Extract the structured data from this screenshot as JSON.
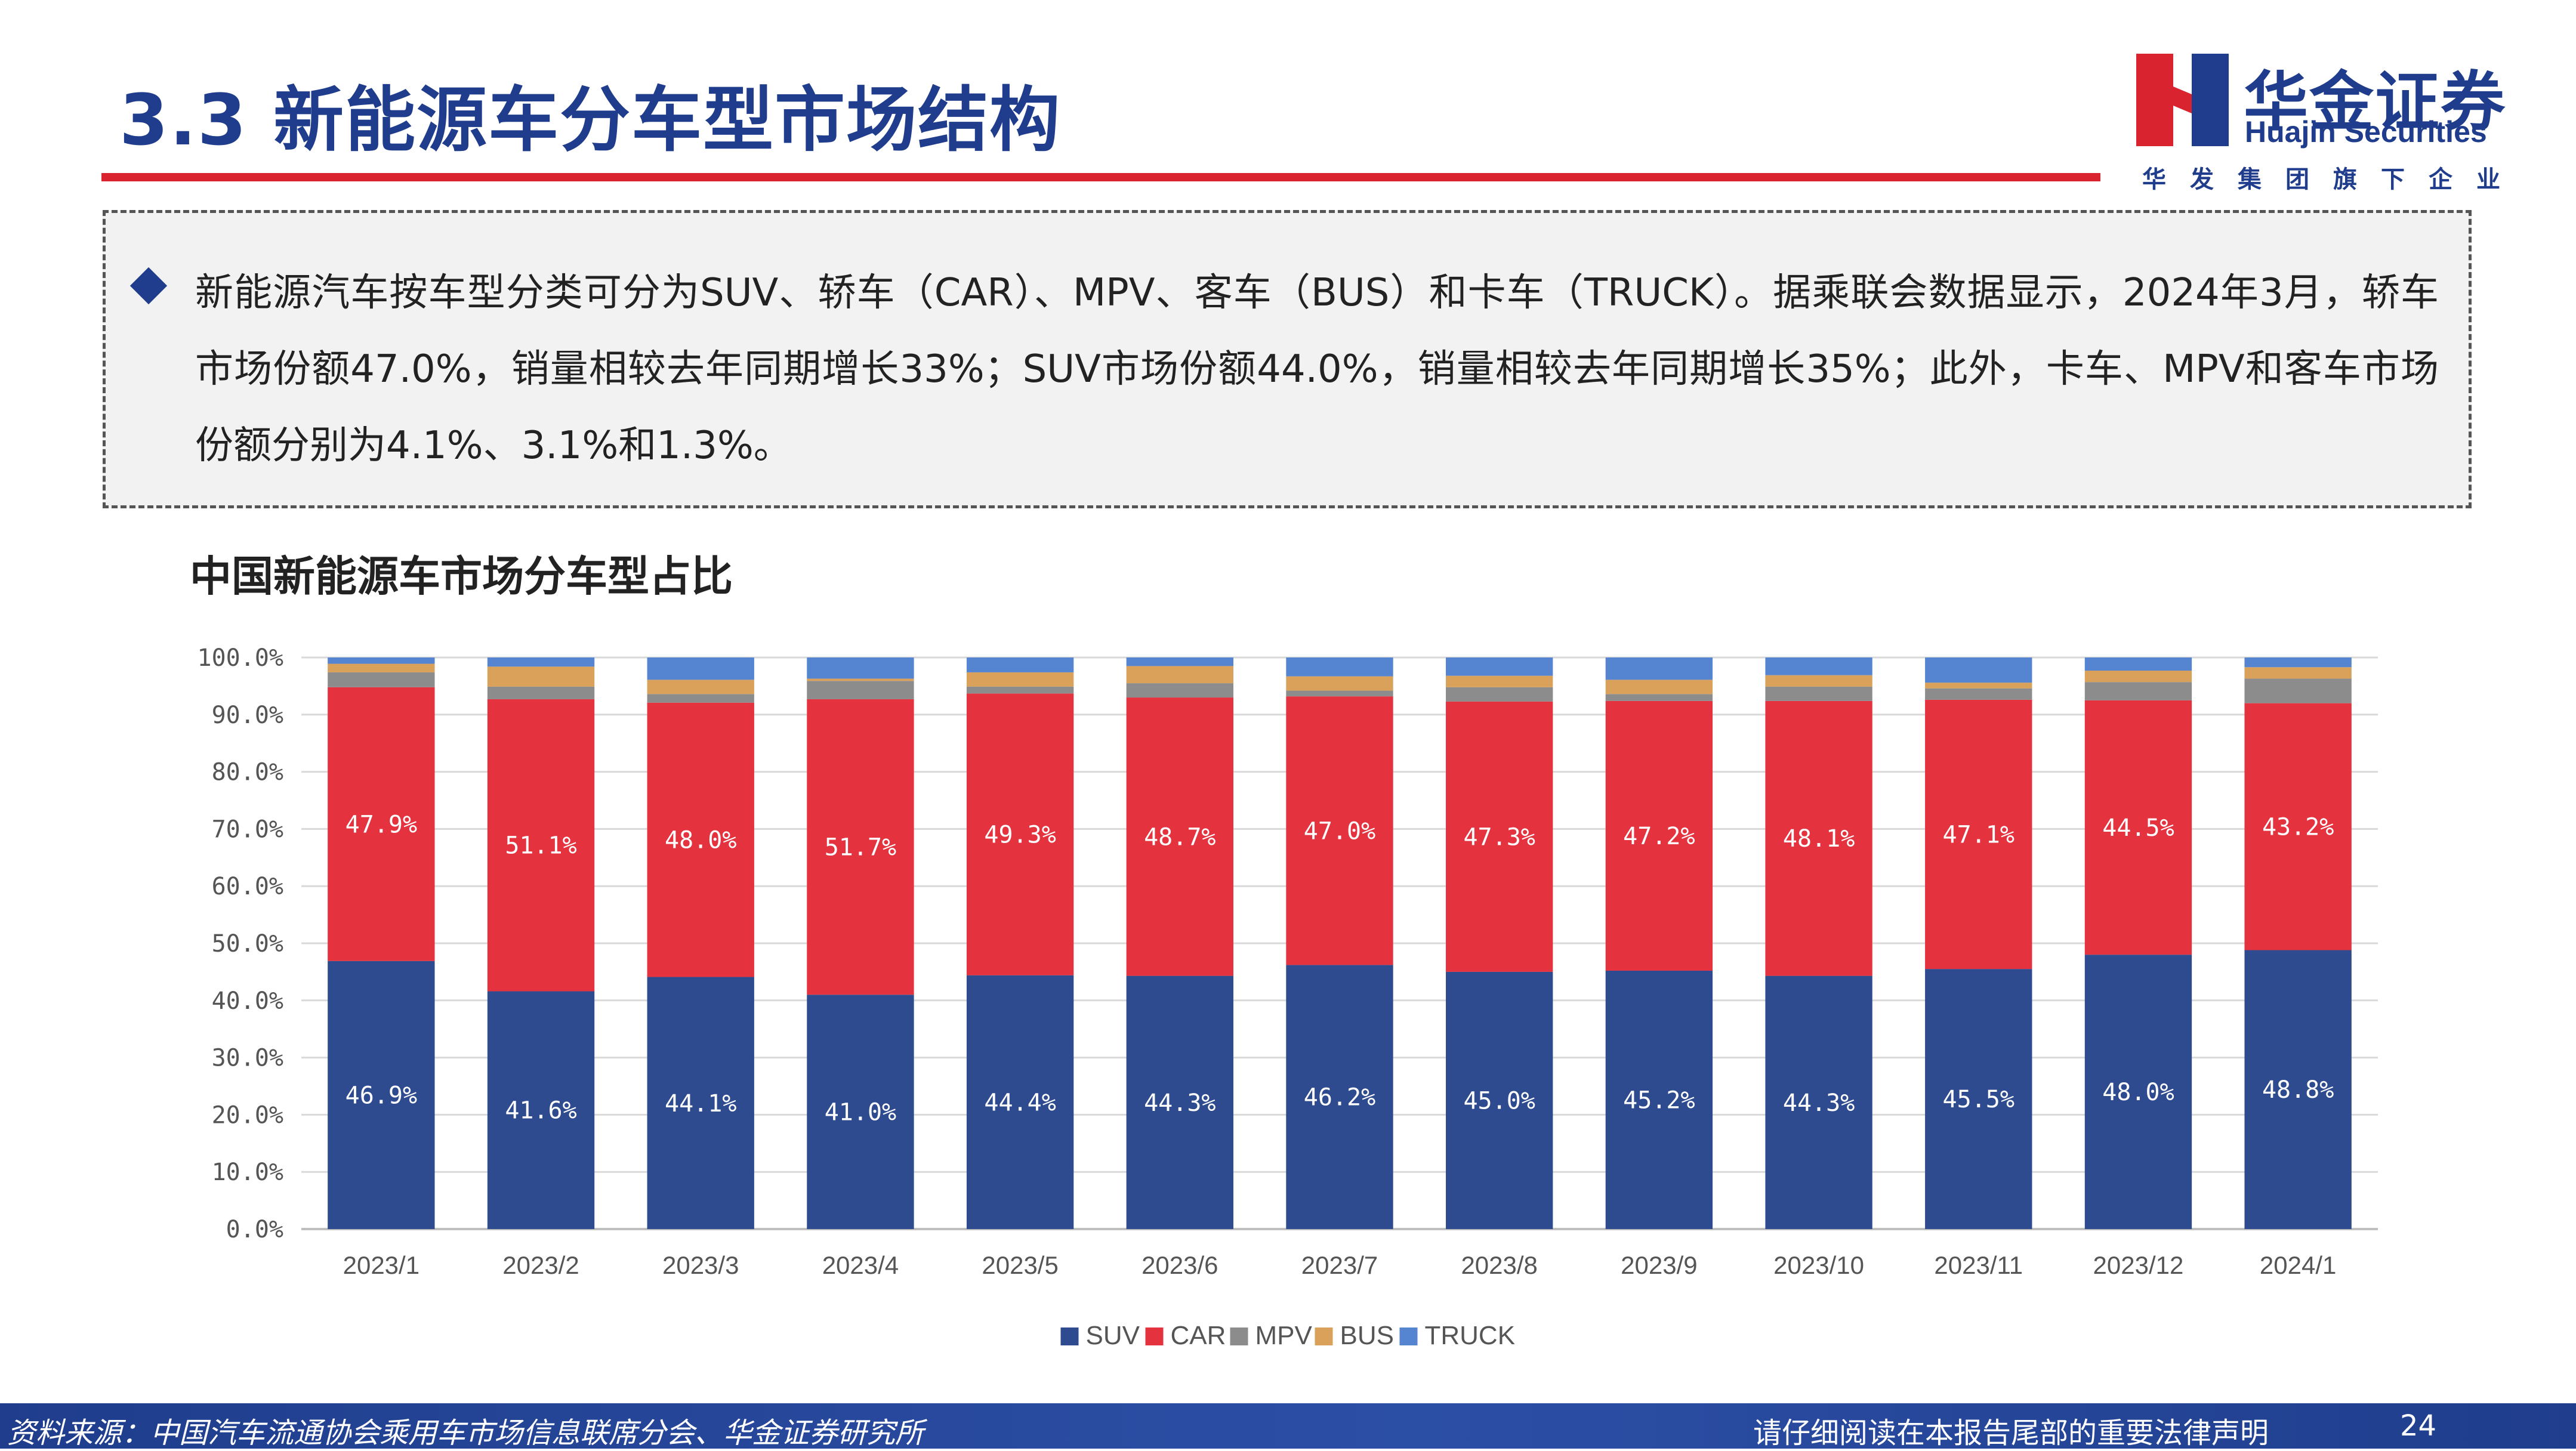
{
  "header": {
    "title": "3.3 新能源车分车型市场结构",
    "logo_cn": "华金证券",
    "logo_en": "Huajin Securities",
    "logo_subtitle": "华发集团旗下企业"
  },
  "summary": {
    "text": "新能源汽车按车型分类可分为SUV、轿车（CAR）、MPV、客车（BUS）和卡车（TRUCK）。据乘联会数据显示，2024年3月，轿车市场份额47.0%，销量相较去年同期增长33%；SUV市场份额44.0%，销量相较去年同期增长35%；此外，卡车、MPV和客车市场份额分别为4.1%、3.1%和1.3%。"
  },
  "chart_title": "中国新能源车市场分车型占比",
  "chart_data": {
    "type": "bar",
    "stacked": true,
    "categories": [
      "2023/1",
      "2023/2",
      "2023/3",
      "2023/4",
      "2023/5",
      "2023/6",
      "2023/7",
      "2023/8",
      "2023/9",
      "2023/10",
      "2023/11",
      "2023/12",
      "2024/1"
    ],
    "ylim": [
      0,
      100
    ],
    "yticks": [
      "0.0%",
      "10.0%",
      "20.0%",
      "30.0%",
      "40.0%",
      "50.0%",
      "60.0%",
      "70.0%",
      "80.0%",
      "90.0%",
      "100.0%"
    ],
    "series": [
      {
        "name": "SUV",
        "color": "#2f4b8f",
        "values": [
          46.9,
          41.6,
          44.1,
          41.0,
          44.4,
          44.3,
          46.2,
          45.0,
          45.2,
          44.3,
          45.5,
          48.0,
          48.8
        ],
        "labels": [
          "46.9%",
          "41.6%",
          "44.1%",
          "41.0%",
          "44.4%",
          "44.3%",
          "46.2%",
          "45.0%",
          "45.2%",
          "44.3%",
          "45.5%",
          "48.0%",
          "48.8%"
        ]
      },
      {
        "name": "CAR",
        "color": "#e4333f",
        "values": [
          47.9,
          51.1,
          48.0,
          51.7,
          49.3,
          48.7,
          47.0,
          47.3,
          47.2,
          48.1,
          47.1,
          44.5,
          43.2
        ],
        "labels": [
          "47.9%",
          "51.1%",
          "48.0%",
          "51.7%",
          "49.3%",
          "48.7%",
          "47.0%",
          "47.3%",
          "47.2%",
          "48.1%",
          "47.1%",
          "44.5%",
          "43.2%"
        ]
      },
      {
        "name": "MPV",
        "color": "#8c8c8c",
        "values": [
          2.6,
          2.2,
          1.5,
          3.2,
          1.2,
          2.5,
          1.0,
          2.5,
          1.2,
          2.5,
          2.0,
          3.2,
          4.3
        ]
      },
      {
        "name": "BUS",
        "color": "#d9a15a",
        "values": [
          1.5,
          3.5,
          2.5,
          0.4,
          2.5,
          3.0,
          2.5,
          2.0,
          2.5,
          2.0,
          1.0,
          2.0,
          2.0
        ]
      },
      {
        "name": "TRUCK",
        "color": "#5585d0",
        "values": [
          1.1,
          1.6,
          3.9,
          3.7,
          2.6,
          1.5,
          3.3,
          3.2,
          3.9,
          3.1,
          4.4,
          2.3,
          1.7
        ]
      }
    ],
    "legend_position": "bottom",
    "grid": true
  },
  "footer": {
    "source": "资料来源：中国汽车流通协会乘用车市场信息联席分会、华金证券研究所",
    "notice": "请仔细阅读在本报告尾部的重要法律声明",
    "page": "24"
  }
}
